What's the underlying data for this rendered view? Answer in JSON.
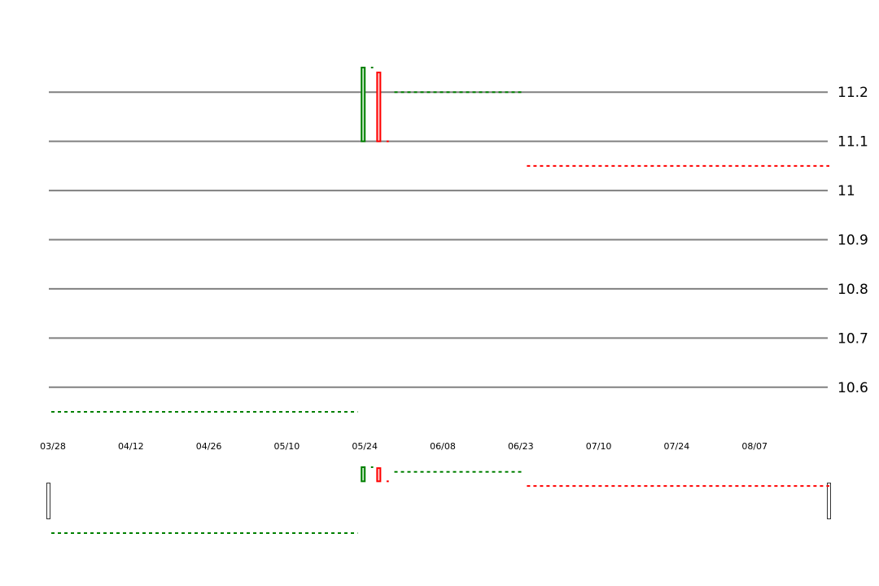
{
  "chart_data": {
    "type": "candlestick",
    "ylim": [
      10.55,
      11.25
    ],
    "y_ticks": [
      {
        "label": "11.2",
        "value": 11.2
      },
      {
        "label": "11.1",
        "value": 11.1
      },
      {
        "label": "11",
        "value": 11.0
      },
      {
        "label": "10.9",
        "value": 10.9
      },
      {
        "label": "10.8",
        "value": 10.8
      },
      {
        "label": "10.7",
        "value": 10.7
      },
      {
        "label": "10.6",
        "value": 10.6
      }
    ],
    "x_ticks": [
      "03/28",
      "04/12",
      "04/26",
      "05/10",
      "05/24",
      "06/08",
      "06/23",
      "07/10",
      "07/24",
      "08/07"
    ],
    "candles": [
      {
        "index": 80,
        "open": 11.1,
        "close": 11.25,
        "color": "up"
      },
      {
        "index": 84,
        "open": 11.24,
        "close": 11.1,
        "color": "down"
      }
    ],
    "level_lines": [
      {
        "from": 0,
        "to": 79,
        "value": 10.55,
        "color": "up"
      },
      {
        "from": 82,
        "to": 83,
        "value": 11.25,
        "color": "up"
      },
      {
        "from": 86,
        "to": 87,
        "value": 11.1,
        "color": "down"
      },
      {
        "from": 88,
        "to": 121,
        "value": 11.2,
        "color": "up"
      },
      {
        "from": 122,
        "to": 200,
        "value": 11.05,
        "color": "down"
      }
    ],
    "colors": {
      "up": "#008000",
      "down": "#ff0000",
      "grid": "#808080"
    }
  }
}
